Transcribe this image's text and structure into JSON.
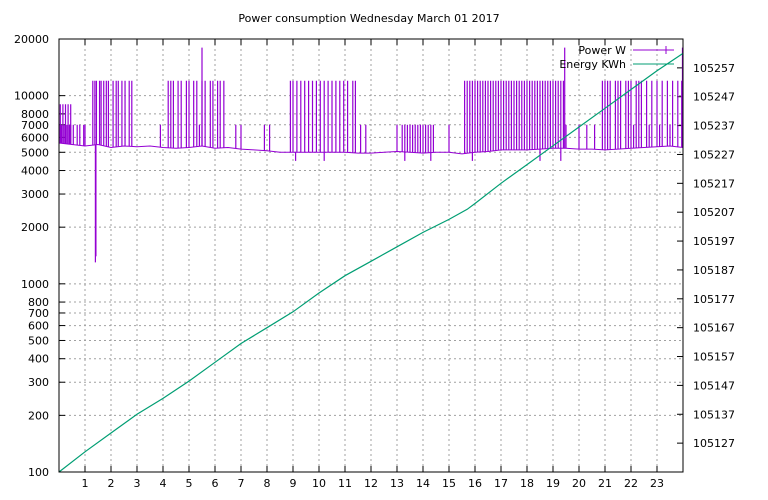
{
  "chart_data": {
    "type": "line",
    "title": "Power consumption Wednesday March 01 2017",
    "x_axis": {
      "range": [
        0,
        24
      ],
      "ticks": [
        1,
        2,
        3,
        4,
        5,
        6,
        7,
        8,
        9,
        10,
        11,
        12,
        13,
        14,
        15,
        16,
        17,
        18,
        19,
        20,
        21,
        22,
        23
      ],
      "tick_labels": [
        "1",
        "2",
        "3",
        "4",
        "5",
        "6",
        "7",
        "8",
        "9",
        "10",
        "11",
        "12",
        "13",
        "14",
        "15",
        "16",
        "17",
        "18",
        "19",
        "20",
        "21",
        "22",
        "23"
      ]
    },
    "y_axis_left": {
      "scale": "log",
      "range": [
        100,
        20000
      ],
      "ticks": [
        100,
        200,
        300,
        400,
        500,
        600,
        700,
        800,
        1000,
        2000,
        3000,
        4000,
        5000,
        6000,
        7000,
        8000,
        10000,
        20000
      ],
      "tick_labels": [
        "100",
        "200",
        "300",
        "400",
        "500",
        "600",
        "700",
        "800",
        "1000",
        "2000",
        "3000",
        "4000",
        "5000",
        "6000",
        "7000",
        "8000",
        "10000",
        "20000"
      ]
    },
    "y_axis_right": {
      "scale": "linear",
      "range": [
        105117,
        105267
      ],
      "ticks": [
        105127,
        105137,
        105147,
        105157,
        105167,
        105177,
        105187,
        105197,
        105207,
        105217,
        105227,
        105237,
        105247,
        105257
      ],
      "tick_labels": [
        "105127",
        "105137",
        "105147",
        "105157",
        "105167",
        "105177",
        "105187",
        "105197",
        "105207",
        "105217",
        "105227",
        "105237",
        "105247",
        "105257"
      ]
    },
    "grid": true,
    "legend_position": "top-right",
    "series": [
      {
        "name": "Power W",
        "axis": "left",
        "color": "#9400d3",
        "baseline_values": [
          [
            0.0,
            5600
          ],
          [
            0.5,
            5500
          ],
          [
            1.0,
            5400
          ],
          [
            1.5,
            5500
          ],
          [
            2.0,
            5300
          ],
          [
            2.5,
            5400
          ],
          [
            3.0,
            5350
          ],
          [
            3.5,
            5400
          ],
          [
            4.0,
            5300
          ],
          [
            4.5,
            5250
          ],
          [
            5.0,
            5300
          ],
          [
            5.5,
            5400
          ],
          [
            6.0,
            5250
          ],
          [
            6.5,
            5300
          ],
          [
            7.0,
            5200
          ],
          [
            7.5,
            5150
          ],
          [
            8.0,
            5100
          ],
          [
            8.5,
            5000
          ],
          [
            9.0,
            5000
          ],
          [
            9.5,
            5000
          ],
          [
            10.0,
            5000
          ],
          [
            10.5,
            5000
          ],
          [
            11.0,
            5000
          ],
          [
            11.5,
            4950
          ],
          [
            12.0,
            4950
          ],
          [
            12.5,
            5000
          ],
          [
            13.0,
            5050
          ],
          [
            13.5,
            5000
          ],
          [
            14.0,
            4950
          ],
          [
            14.5,
            5000
          ],
          [
            15.0,
            5000
          ],
          [
            15.5,
            4900
          ],
          [
            16.0,
            5000
          ],
          [
            16.5,
            5050
          ],
          [
            17.0,
            5150
          ],
          [
            17.5,
            5150
          ],
          [
            18.0,
            5150
          ],
          [
            18.5,
            5200
          ],
          [
            19.0,
            5250
          ],
          [
            19.5,
            5250
          ],
          [
            20.0,
            5200
          ],
          [
            20.5,
            5200
          ],
          [
            21.0,
            5150
          ],
          [
            21.5,
            5200
          ],
          [
            22.0,
            5250
          ],
          [
            22.5,
            5300
          ],
          [
            23.0,
            5350
          ],
          [
            23.5,
            5400
          ],
          [
            24.0,
            5300
          ]
        ],
        "spike_level": 12000,
        "spike_times": [
          1.3,
          1.38,
          1.44,
          1.56,
          1.62,
          1.72,
          1.82,
          1.9,
          2.08,
          2.2,
          2.28,
          2.42,
          2.54,
          2.7,
          2.8,
          4.2,
          4.3,
          4.4,
          4.58,
          4.7,
          4.9,
          5.0,
          5.18,
          5.3,
          5.5,
          5.62,
          5.82,
          5.92,
          6.1,
          6.2,
          6.34,
          8.9,
          9.0,
          9.15,
          9.3,
          9.45,
          9.6,
          9.75,
          9.9,
          10.05,
          10.2,
          10.35,
          10.5,
          10.65,
          10.8,
          10.95,
          11.1,
          11.3,
          11.4,
          15.6,
          15.7,
          15.8,
          15.9,
          16.0,
          16.1,
          16.2,
          16.3,
          16.4,
          16.5,
          16.6,
          16.7,
          16.8,
          16.9,
          17.0,
          17.1,
          17.2,
          17.3,
          17.4,
          17.5,
          17.6,
          17.7,
          17.8,
          17.9,
          18.0,
          18.1,
          18.2,
          18.3,
          18.4,
          18.5,
          18.6,
          18.7,
          18.8,
          18.9,
          19.0,
          19.1,
          19.2,
          19.3,
          19.4,
          20.9,
          21.0,
          21.1,
          21.2,
          21.4,
          21.5,
          21.6,
          21.8,
          21.9,
          22.0,
          22.2,
          22.3,
          22.4,
          22.6,
          22.8,
          23.0,
          23.2,
          23.4,
          23.6,
          23.8,
          23.95
        ],
        "mid_spike_level": 7000,
        "mid_spike_times": [
          0.05,
          0.1,
          0.2,
          0.3,
          0.4,
          0.45,
          0.55,
          0.7,
          0.8,
          0.95,
          1.0,
          3.9,
          5.4,
          6.8,
          7.0,
          7.9,
          8.1,
          11.6,
          11.8,
          13.0,
          13.2,
          13.3,
          13.4,
          13.5,
          13.6,
          13.7,
          13.8,
          13.9,
          14.0,
          14.1,
          14.2,
          14.3,
          14.4,
          15.0,
          19.5,
          20.0,
          20.3,
          20.6,
          22.1,
          22.7,
          23.1,
          23.5
        ],
        "high_spike_level": 9000,
        "high_spike_times": [
          0.05,
          0.15,
          0.25,
          0.35,
          0.45
        ],
        "peaks": [
          [
            5.5,
            18000
          ],
          [
            19.45,
            18000
          ],
          [
            23.98,
            18000
          ]
        ],
        "dips": [
          [
            1.4,
            1300
          ],
          [
            1.42,
            1400
          ],
          [
            9.1,
            4500
          ],
          [
            10.2,
            4500
          ],
          [
            13.3,
            4500
          ],
          [
            14.3,
            4500
          ],
          [
            15.9,
            4500
          ],
          [
            18.5,
            4500
          ],
          [
            19.3,
            4500
          ]
        ]
      },
      {
        "name": "Energy KWh",
        "axis": "right",
        "color": "#009e73",
        "values": [
          [
            0.0,
            105117.0
          ],
          [
            1.0,
            105124.0
          ],
          [
            2.0,
            105130.5
          ],
          [
            3.0,
            105137.0
          ],
          [
            4.0,
            105142.5
          ],
          [
            5.0,
            105148.5
          ],
          [
            6.0,
            105155.0
          ],
          [
            7.0,
            105161.5
          ],
          [
            8.0,
            105167.0
          ],
          [
            9.0,
            105172.5
          ],
          [
            10.0,
            105179.0
          ],
          [
            11.0,
            105185.0
          ],
          [
            12.0,
            105190.0
          ],
          [
            13.0,
            105195.0
          ],
          [
            14.0,
            105200.0
          ],
          [
            15.0,
            105204.5
          ],
          [
            15.7,
            105208.0
          ],
          [
            16.0,
            105210.0
          ],
          [
            17.0,
            105217.0
          ],
          [
            18.0,
            105223.5
          ],
          [
            19.0,
            105230.0
          ],
          [
            20.0,
            105236.5
          ],
          [
            21.0,
            105243.0
          ],
          [
            22.0,
            105249.5
          ],
          [
            23.0,
            105256.0
          ],
          [
            24.0,
            105262.0
          ]
        ]
      }
    ]
  }
}
